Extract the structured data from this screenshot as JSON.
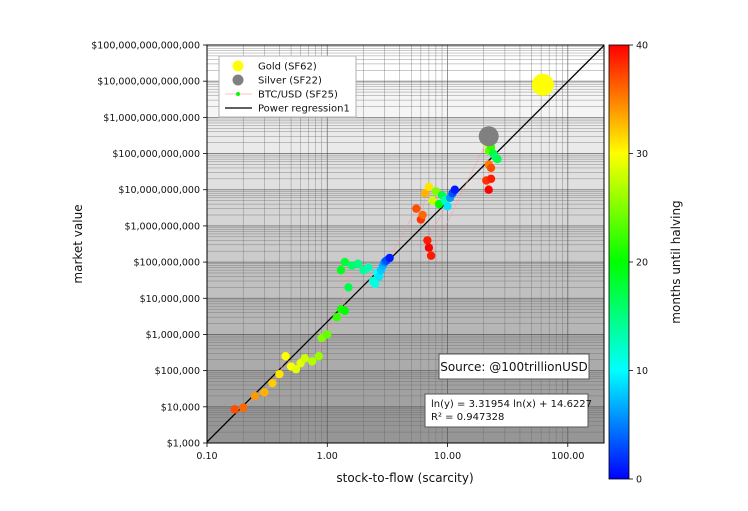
{
  "chart_data": {
    "type": "scatter",
    "title": "",
    "xlabel": "stock-to-flow (scarcity)",
    "ylabel": "market value",
    "colorbar_label": "months until halving",
    "x_scale": "log",
    "y_scale": "log",
    "xlim": [
      0.1,
      200
    ],
    "ylim": [
      1000,
      100000000000000
    ],
    "colorbar_range": [
      0,
      40
    ],
    "x_ticks": [
      {
        "value": 0.1,
        "label": "0.10"
      },
      {
        "value": 1,
        "label": "1.00"
      },
      {
        "value": 10,
        "label": "10.00"
      },
      {
        "value": 100,
        "label": "100.00"
      }
    ],
    "y_ticks": [
      {
        "value": 1000,
        "label": "$1,000"
      },
      {
        "value": 10000,
        "label": "$10,000"
      },
      {
        "value": 100000,
        "label": "$100,000"
      },
      {
        "value": 1000000,
        "label": "$1,000,000"
      },
      {
        "value": 10000000,
        "label": "$10,000,000"
      },
      {
        "value": 100000000,
        "label": "$100,000,000"
      },
      {
        "value": 1000000000,
        "label": "$1,000,000,000"
      },
      {
        "value": 10000000000,
        "label": "$10,000,000,000"
      },
      {
        "value": 100000000000,
        "label": "$100,000,000,000"
      },
      {
        "value": 1000000000000,
        "label": "$1,000,000,000,000"
      },
      {
        "value": 10000000000000,
        "label": "$10,000,000,000,000"
      },
      {
        "value": 100000000000000,
        "label": "$100,000,000,000,000"
      }
    ],
    "colorbar_ticks": [
      {
        "value": 0,
        "label": "0"
      },
      {
        "value": 10,
        "label": "10"
      },
      {
        "value": 20,
        "label": "20"
      },
      {
        "value": 30,
        "label": "30"
      },
      {
        "value": 40,
        "label": "40"
      }
    ],
    "legend": {
      "placement": "top-left",
      "entries": [
        {
          "label": "Gold (SF62)",
          "color": "#ffff00",
          "marker": "circle-large"
        },
        {
          "label": "Silver (SF22)",
          "color": "#808080",
          "marker": "circle-large"
        },
        {
          "label": "BTC/USD (SF25)",
          "color": "#00ff00",
          "marker": "dot-line"
        },
        {
          "label": "Power regression1",
          "color": "#000000",
          "marker": "line"
        }
      ]
    },
    "annotations": {
      "source": "Source: @100trillionUSD",
      "equation": "ln(y) = 3.31954 ln(x) + 14.6227",
      "r2": "R² = 0.947328"
    },
    "regression": {
      "a": 3.31954,
      "b": 14.6227
    },
    "gold": {
      "x": 62,
      "y": 8000000000000,
      "color": "#ffff00"
    },
    "silver": {
      "x": 22,
      "y": 300000000000,
      "color": "#808080"
    },
    "btc_points": [
      {
        "x": 0.17,
        "y": 8500,
        "m": 37
      },
      {
        "x": 0.2,
        "y": 9500,
        "m": 36
      },
      {
        "x": 0.25,
        "y": 20000,
        "m": 34
      },
      {
        "x": 0.3,
        "y": 25000,
        "m": 33
      },
      {
        "x": 0.35,
        "y": 45000,
        "m": 32
      },
      {
        "x": 0.4,
        "y": 80000,
        "m": 31
      },
      {
        "x": 0.45,
        "y": 250000,
        "m": 30
      },
      {
        "x": 0.5,
        "y": 130000,
        "m": 30
      },
      {
        "x": 0.55,
        "y": 110000,
        "m": 29
      },
      {
        "x": 0.6,
        "y": 160000,
        "m": 29
      },
      {
        "x": 0.65,
        "y": 220000,
        "m": 28
      },
      {
        "x": 0.75,
        "y": 180000,
        "m": 27
      },
      {
        "x": 0.85,
        "y": 250000,
        "m": 26
      },
      {
        "x": 0.9,
        "y": 800000,
        "m": 25
      },
      {
        "x": 1.0,
        "y": 1000000,
        "m": 24
      },
      {
        "x": 1.2,
        "y": 3000000,
        "m": 22
      },
      {
        "x": 1.3,
        "y": 5000000,
        "m": 21
      },
      {
        "x": 1.4,
        "y": 4500000,
        "m": 20
      },
      {
        "x": 1.3,
        "y": 60000000,
        "m": 19
      },
      {
        "x": 1.4,
        "y": 100000000,
        "m": 18
      },
      {
        "x": 1.5,
        "y": 20000000,
        "m": 17
      },
      {
        "x": 1.6,
        "y": 80000000,
        "m": 16
      },
      {
        "x": 1.8,
        "y": 90000000,
        "m": 15
      },
      {
        "x": 2.0,
        "y": 60000000,
        "m": 14
      },
      {
        "x": 2.2,
        "y": 70000000,
        "m": 13
      },
      {
        "x": 2.4,
        "y": 30000000,
        "m": 12
      },
      {
        "x": 2.5,
        "y": 25000000,
        "m": 11
      },
      {
        "x": 2.6,
        "y": 50000000,
        "m": 10
      },
      {
        "x": 2.7,
        "y": 40000000,
        "m": 9
      },
      {
        "x": 2.8,
        "y": 60000000,
        "m": 8
      },
      {
        "x": 2.9,
        "y": 80000000,
        "m": 7
      },
      {
        "x": 3.0,
        "y": 100000000,
        "m": 5
      },
      {
        "x": 3.1,
        "y": 110000000,
        "m": 3
      },
      {
        "x": 3.3,
        "y": 130000000,
        "m": 1
      },
      {
        "x": 5.5,
        "y": 3000000000,
        "m": 37
      },
      {
        "x": 6.0,
        "y": 1500000000,
        "m": 38
      },
      {
        "x": 6.2,
        "y": 2000000000,
        "m": 36
      },
      {
        "x": 6.5,
        "y": 8000000000,
        "m": 33
      },
      {
        "x": 7.0,
        "y": 12000000000,
        "m": 31
      },
      {
        "x": 7.5,
        "y": 5000000000,
        "m": 28
      },
      {
        "x": 8.0,
        "y": 9000000000,
        "m": 25
      },
      {
        "x": 8.5,
        "y": 4000000000,
        "m": 20
      },
      {
        "x": 9.0,
        "y": 7000000000,
        "m": 17
      },
      {
        "x": 9.5,
        "y": 5000000000,
        "m": 13
      },
      {
        "x": 10.0,
        "y": 3500000000,
        "m": 9
      },
      {
        "x": 10.5,
        "y": 6000000000,
        "m": 6
      },
      {
        "x": 11.0,
        "y": 8000000000,
        "m": 3
      },
      {
        "x": 11.5,
        "y": 10000000000,
        "m": 1
      },
      {
        "x": 6.8,
        "y": 400000000,
        "m": 39
      },
      {
        "x": 7.0,
        "y": 250000000,
        "m": 40
      },
      {
        "x": 7.3,
        "y": 150000000,
        "m": 39
      },
      {
        "x": 21.0,
        "y": 200000000000,
        "m": 29
      },
      {
        "x": 22.0,
        "y": 120000000000,
        "m": 24
      },
      {
        "x": 23.0,
        "y": 150000000000,
        "m": 22
      },
      {
        "x": 24.0,
        "y": 100000000000,
        "m": 18
      },
      {
        "x": 25.0,
        "y": 80000000000,
        "m": 15
      },
      {
        "x": 26.0,
        "y": 70000000000,
        "m": 17
      },
      {
        "x": 22.0,
        "y": 50000000000,
        "m": 35
      },
      {
        "x": 23.0,
        "y": 40000000000,
        "m": 37
      },
      {
        "x": 21.0,
        "y": 18000000000,
        "m": 38
      },
      {
        "x": 22.0,
        "y": 10000000000,
        "m": 40
      },
      {
        "x": 23.0,
        "y": 20000000000,
        "m": 39
      }
    ]
  }
}
